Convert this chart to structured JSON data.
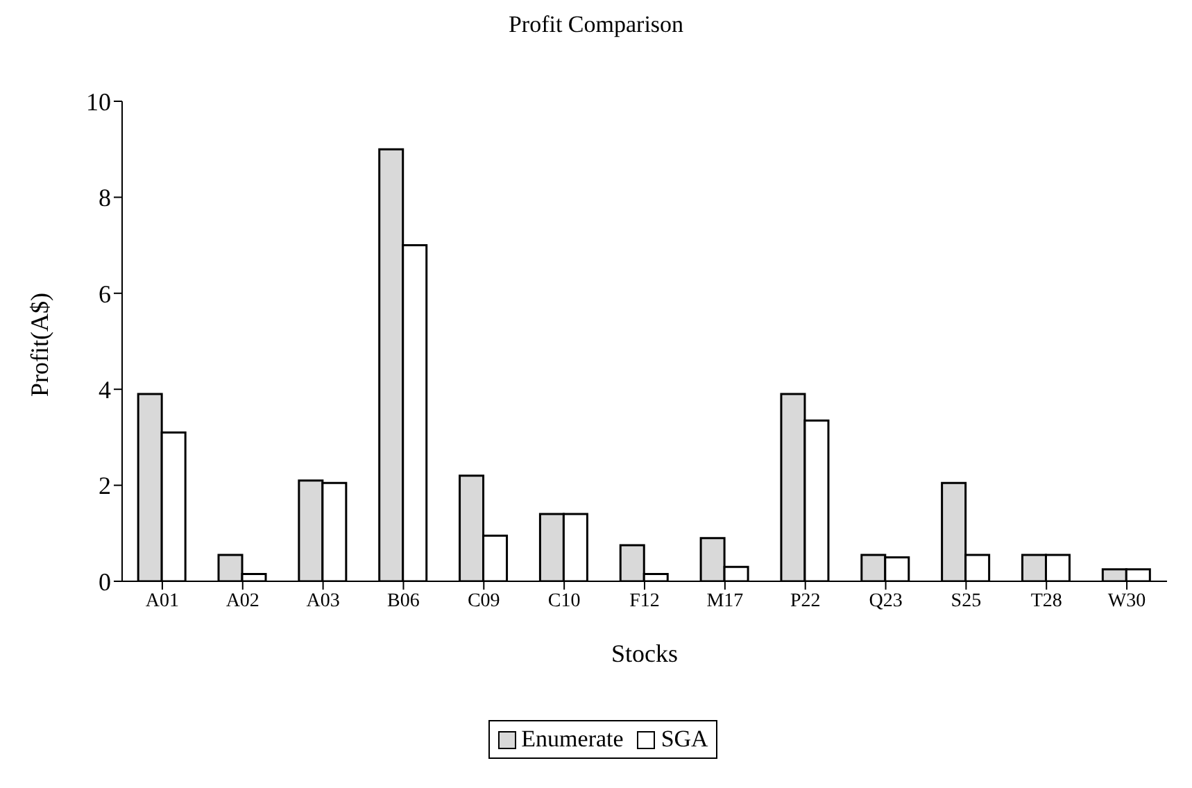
{
  "chart_data": {
    "type": "bar",
    "title": "Profit Comparison",
    "xlabel": "Stocks",
    "ylabel": "Profit(A$)",
    "categories": [
      "A01",
      "A02",
      "A03",
      "B06",
      "C09",
      "C10",
      "F12",
      "M17",
      "P22",
      "Q23",
      "S25",
      "T28",
      "W30"
    ],
    "series": [
      {
        "name": "Enumerate",
        "color": "#d9d9d9",
        "values": [
          3.9,
          0.55,
          2.1,
          9.0,
          2.2,
          1.4,
          0.75,
          0.9,
          3.9,
          0.55,
          2.05,
          0.55,
          0.25
        ]
      },
      {
        "name": "SGA",
        "color": "#ffffff",
        "values": [
          3.1,
          0.15,
          2.05,
          7.0,
          0.95,
          1.4,
          0.15,
          0.3,
          3.35,
          0.5,
          0.55,
          0.55,
          0.25
        ]
      }
    ],
    "ylim": [
      0,
      10
    ],
    "yticks": [
      0,
      2,
      4,
      6,
      8,
      10
    ],
    "grid": false,
    "legend": "bottom"
  }
}
